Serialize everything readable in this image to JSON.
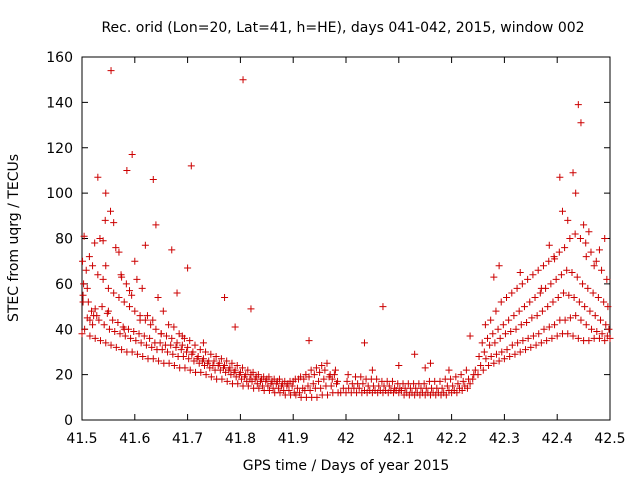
{
  "chart_data": {
    "type": "scatter",
    "title": "Rec. orid (Lon=20, Lat=41, h=HE), days 041-042, 2015, window 002",
    "xlabel": "GPS time / Days of year 2015",
    "ylabel": "STEC from uqrg / TECUs",
    "xlim": [
      41.5,
      42.5
    ],
    "ylim": [
      0,
      160
    ],
    "xticks": [
      "41.5",
      "41.6",
      "41.7",
      "41.8",
      "41.9",
      "42",
      "42.1",
      "42.2",
      "42.3",
      "42.4",
      "42.5"
    ],
    "yticks": [
      "0",
      "20",
      "40",
      "60",
      "80",
      "100",
      "120",
      "140",
      "160"
    ],
    "grid": false,
    "legend": "none",
    "marker": "plus",
    "color": "#cc0000",
    "series": [
      {
        "x": [
          41.5,
          41.505,
          41.515,
          41.525,
          41.535,
          41.545,
          41.555,
          41.565,
          41.575,
          41.585,
          41.595,
          41.605,
          41.615,
          41.625,
          41.635,
          41.645,
          41.655,
          41.665,
          41.675,
          41.685,
          41.695,
          41.705,
          41.715,
          41.725,
          41.735,
          41.745,
          41.755,
          41.765,
          41.775,
          41.785,
          41.795,
          41.805,
          41.815,
          41.825,
          41.835,
          41.845,
          41.855,
          41.865,
          41.875,
          41.885,
          41.895,
          41.905,
          41.915,
          41.925,
          41.935,
          41.945,
          41.955,
          41.965,
          41.975,
          41.985,
          41.502,
          41.512,
          41.522,
          41.532,
          41.542,
          41.552,
          41.562,
          41.572,
          41.582,
          41.592,
          41.602,
          41.612,
          41.622,
          41.632,
          41.642,
          41.652,
          41.662,
          41.672,
          41.682,
          41.692,
          41.702,
          41.712,
          41.722,
          41.732,
          41.742,
          41.752,
          41.762,
          41.772,
          41.782,
          41.792,
          41.802,
          41.812,
          41.822,
          41.832,
          41.842,
          41.852,
          41.862,
          41.872,
          41.882,
          41.892,
          41.902,
          41.912,
          41.922,
          41.932,
          41.942,
          41.952,
          41.962,
          41.972,
          41.982,
          41.503,
          41.51,
          41.518,
          41.528,
          41.538,
          41.548,
          41.558,
          41.568,
          41.578,
          41.588,
          41.598,
          41.608,
          41.618,
          41.628,
          41.638,
          41.648,
          41.658,
          41.668,
          41.678,
          41.688,
          41.698,
          41.708,
          41.718,
          41.728,
          41.738,
          41.748,
          41.758,
          41.768,
          41.778,
          41.788,
          41.798,
          41.808,
          41.818,
          41.828,
          41.838,
          41.848,
          41.858,
          41.868,
          41.878,
          41.888,
          41.898,
          41.908,
          41.918,
          41.928,
          41.938,
          41.948,
          41.958,
          41.968,
          41.978,
          41.501,
          41.508,
          41.52,
          41.53,
          41.54,
          41.55,
          41.56,
          41.57,
          41.58,
          41.59,
          41.6,
          41.61,
          41.62,
          41.63,
          41.64,
          41.65,
          41.66,
          41.67,
          41.68,
          41.69,
          41.7,
          41.71,
          41.72,
          41.73,
          41.74,
          41.75,
          41.76,
          41.77,
          41.78,
          41.79,
          41.8,
          41.81,
          41.82,
          41.83,
          41.84,
          41.85,
          41.86,
          41.87,
          41.88,
          41.89,
          41.9,
          41.91,
          41.92,
          41.93,
          41.94,
          41.95,
          41.96,
          41.97,
          41.98,
          41.504,
          41.514,
          41.524,
          41.534,
          41.544,
          41.554,
          41.564,
          41.574,
          41.584,
          41.594,
          41.604,
          41.614,
          41.624,
          41.634,
          41.644,
          41.654,
          41.664,
          41.674,
          41.684,
          41.694,
          41.704,
          41.714,
          41.724,
          41.734,
          41.744,
          41.754,
          41.764,
          41.774,
          41.784,
          41.794,
          41.804,
          41.814,
          41.824,
          41.834,
          41.844,
          41.854,
          41.864,
          41.874,
          41.884,
          41.894,
          41.904,
          41.914,
          41.924,
          41.934,
          41.944,
          41.954,
          41.964,
          41.974,
          41.984,
          41.555,
          41.53,
          41.545,
          41.595,
          41.585,
          41.635,
          41.707,
          41.805,
          41.62,
          41.67,
          41.64,
          41.6,
          41.56,
          41.7,
          41.68,
          41.57,
          41.575,
          41.54,
          41.502,
          41.515,
          41.525,
          41.55,
          41.58,
          41.61,
          41.65,
          41.69,
          41.73,
          41.77,
          41.79,
          41.82,
          41.93,
          41.51,
          41.52,
          41.59,
          41.545,
          41.99,
          42.0,
          42.01,
          42.02,
          42.03,
          42.04,
          42.05,
          42.06,
          42.07,
          42.08,
          42.09,
          42.1,
          42.11,
          42.12,
          42.13,
          42.14,
          42.15,
          42.16,
          42.17,
          42.18,
          42.19,
          42.2,
          42.21,
          42.22,
          42.23,
          41.995,
          42.005,
          42.015,
          42.025,
          42.035,
          42.045,
          42.055,
          42.065,
          42.075,
          42.085,
          42.095,
          42.105,
          42.115,
          42.125,
          42.135,
          42.145,
          42.155,
          42.165,
          42.175,
          42.185,
          42.195,
          42.205,
          42.215,
          42.225,
          42.235,
          42.002,
          42.012,
          42.022,
          42.032,
          42.042,
          42.052,
          42.062,
          42.072,
          42.082,
          42.092,
          42.102,
          42.112,
          42.122,
          42.132,
          42.142,
          42.152,
          42.162,
          42.172,
          42.182,
          42.192,
          42.202,
          42.212,
          42.222,
          42.232,
          42.242,
          42.004,
          42.018,
          42.028,
          42.038,
          42.048,
          42.058,
          42.068,
          42.078,
          42.088,
          42.098,
          42.108,
          42.118,
          42.128,
          42.138,
          42.148,
          42.158,
          42.168,
          42.178,
          42.188,
          42.198,
          42.208,
          42.218,
          42.228,
          42.035,
          42.07,
          42.1,
          42.13,
          42.16,
          42.195,
          42.235,
          42.05,
          42.15,
          42.24,
          42.25,
          42.26,
          42.27,
          42.28,
          42.29,
          42.3,
          42.31,
          42.32,
          42.33,
          42.34,
          42.35,
          42.36,
          42.37,
          42.38,
          42.39,
          42.4,
          42.41,
          42.42,
          42.43,
          42.44,
          42.45,
          42.46,
          42.47,
          42.48,
          42.49,
          42.5,
          42.245,
          42.255,
          42.265,
          42.275,
          42.285,
          42.295,
          42.305,
          42.315,
          42.325,
          42.335,
          42.345,
          42.355,
          42.365,
          42.375,
          42.385,
          42.395,
          42.405,
          42.415,
          42.425,
          42.435,
          42.445,
          42.455,
          42.465,
          42.475,
          42.485,
          42.495,
          42.252,
          42.262,
          42.272,
          42.282,
          42.292,
          42.302,
          42.312,
          42.322,
          42.332,
          42.342,
          42.352,
          42.362,
          42.372,
          42.382,
          42.392,
          42.402,
          42.412,
          42.422,
          42.432,
          42.442,
          42.452,
          42.462,
          42.472,
          42.482,
          42.492,
          42.498,
          42.258,
          42.268,
          42.278,
          42.288,
          42.298,
          42.308,
          42.318,
          42.328,
          42.338,
          42.348,
          42.358,
          42.368,
          42.378,
          42.388,
          42.398,
          42.408,
          42.418,
          42.428,
          42.438,
          42.448,
          42.458,
          42.468,
          42.478,
          42.488,
          42.496,
          42.264,
          42.274,
          42.284,
          42.294,
          42.304,
          42.314,
          42.324,
          42.334,
          42.344,
          42.354,
          42.364,
          42.374,
          42.384,
          42.394,
          42.404,
          42.414,
          42.424,
          42.434,
          42.444,
          42.454,
          42.464,
          42.474,
          42.484,
          42.494,
          42.44,
          42.43,
          42.445,
          42.405,
          42.41,
          42.435,
          42.42,
          42.45,
          42.46,
          42.385,
          42.395,
          42.33,
          42.29,
          42.28,
          42.37,
          42.48,
          42.49,
          42.47,
          42.455
        ],
        "y": [
          38,
          40,
          37,
          36,
          35,
          34,
          33,
          32,
          31,
          30,
          30,
          29,
          28,
          27,
          27,
          26,
          25,
          25,
          24,
          23,
          23,
          22,
          21,
          21,
          20,
          19,
          18,
          18,
          17,
          16,
          16,
          15,
          15,
          14,
          14,
          13,
          13,
          12,
          12,
          11,
          11,
          11,
          10,
          10,
          10,
          10,
          11,
          11,
          12,
          12,
          55,
          52,
          46,
          44,
          42,
          40,
          39,
          38,
          37,
          36,
          35,
          34,
          33,
          32,
          31,
          31,
          30,
          29,
          28,
          28,
          27,
          26,
          25,
          24,
          23,
          22,
          22,
          21,
          20,
          19,
          18,
          17,
          17,
          16,
          15,
          15,
          14,
          14,
          13,
          13,
          12,
          12,
          13,
          13,
          14,
          14,
          15,
          15,
          16,
          60,
          58,
          48,
          46,
          50,
          47,
          44,
          43,
          41,
          40,
          39,
          38,
          37,
          36,
          34,
          34,
          33,
          33,
          32,
          31,
          30,
          29,
          27,
          26,
          25,
          24,
          24,
          23,
          22,
          21,
          20,
          19,
          18,
          18,
          17,
          17,
          16,
          16,
          15,
          15,
          15,
          14,
          14,
          15,
          16,
          17,
          18,
          19,
          20,
          70,
          66,
          68,
          64,
          62,
          58,
          56,
          54,
          52,
          50,
          48,
          46,
          44,
          42,
          40,
          38,
          37,
          36,
          34,
          33,
          32,
          30,
          28,
          27,
          26,
          26,
          25,
          24,
          23,
          22,
          21,
          20,
          20,
          19,
          18,
          18,
          17,
          17,
          16,
          16,
          17,
          18,
          18,
          19,
          20,
          21,
          22,
          20,
          22,
          81,
          72,
          78,
          80,
          88,
          92,
          76,
          64,
          60,
          55,
          62,
          58,
          46,
          44,
          54,
          48,
          42,
          41,
          38,
          36,
          35,
          33,
          31,
          30,
          29,
          28,
          27,
          26,
          25,
          24,
          23,
          22,
          21,
          20,
          19,
          19,
          18,
          18,
          17,
          17,
          18,
          19,
          20,
          22,
          23,
          24,
          25,
          18,
          17,
          154,
          107,
          100,
          117,
          110,
          106,
          112,
          150,
          77,
          75,
          86,
          70,
          87,
          67,
          56,
          74,
          63,
          79,
          52,
          44,
          49,
          48,
          40,
          44,
          38,
          37,
          34,
          54,
          41,
          49,
          35,
          45,
          42,
          57,
          68,
          12,
          12,
          12,
          12,
          12,
          12,
          12,
          12,
          12,
          12,
          12,
          12,
          11,
          11,
          11,
          11,
          11,
          11,
          11,
          11,
          11,
          12,
          12,
          13,
          14,
          14,
          14,
          14,
          14,
          13,
          13,
          13,
          13,
          13,
          13,
          13,
          13,
          12,
          12,
          12,
          12,
          12,
          12,
          12,
          12,
          13,
          13,
          14,
          15,
          16,
          17,
          16,
          16,
          16,
          15,
          15,
          15,
          15,
          15,
          14,
          14,
          14,
          14,
          14,
          14,
          14,
          14,
          14,
          14,
          15,
          15,
          16,
          17,
          18,
          20,
          20,
          19,
          19,
          18,
          18,
          18,
          17,
          17,
          17,
          16,
          16,
          16,
          16,
          16,
          16,
          17,
          17,
          17,
          18,
          18,
          19,
          20,
          22,
          34,
          50,
          24,
          29,
          25,
          22,
          37,
          22,
          23,
          18,
          20,
          22,
          24,
          25,
          26,
          27,
          28,
          29,
          30,
          31,
          32,
          33,
          34,
          35,
          36,
          37,
          38,
          38,
          37,
          36,
          35,
          35,
          36,
          36,
          35,
          36,
          22,
          24,
          27,
          28,
          29,
          30,
          31,
          33,
          34,
          35,
          36,
          37,
          38,
          40,
          41,
          42,
          44,
          44,
          45,
          46,
          44,
          42,
          40,
          39,
          38,
          37,
          28,
          30,
          33,
          34,
          36,
          38,
          39,
          40,
          42,
          43,
          45,
          46,
          48,
          50,
          52,
          54,
          56,
          55,
          54,
          52,
          50,
          48,
          46,
          44,
          42,
          40,
          34,
          36,
          38,
          40,
          42,
          44,
          46,
          48,
          50,
          52,
          54,
          56,
          58,
          60,
          62,
          64,
          66,
          65,
          63,
          60,
          58,
          56,
          54,
          52,
          50,
          42,
          44,
          48,
          52,
          54,
          56,
          58,
          60,
          62,
          64,
          66,
          68,
          70,
          72,
          74,
          76,
          80,
          82,
          80,
          78,
          74,
          70,
          66,
          62,
          139,
          109,
          131,
          107,
          92,
          100,
          88,
          86,
          83,
          77,
          71,
          65,
          68,
          63,
          58,
          75,
          80,
          68,
          72
        ]
      }
    ]
  }
}
